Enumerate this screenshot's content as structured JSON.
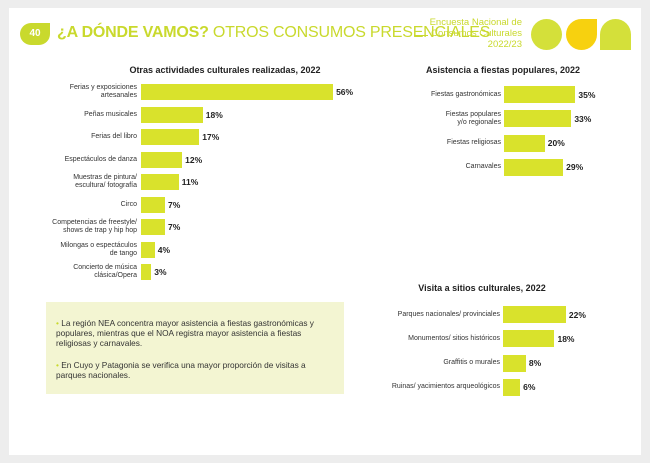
{
  "header": {
    "page_number": "40",
    "title_bold": "¿A DÓNDE VAMOS?",
    "title_rest": " OTROS CONSUMOS PRESENCIALES",
    "survey_line1": "Encuesta Nacional de",
    "survey_line2": "Consumos Culturales",
    "survey_line3": "2022/23"
  },
  "colors": {
    "accent": "#c9d92d",
    "bar": "#d9e22c",
    "yellow": "#f7d10f",
    "note_bg": "#f3f5d2"
  },
  "chart_data": [
    {
      "type": "bar",
      "orientation": "horizontal",
      "title": "Otras actividades culturales realizadas, 2022",
      "categories": [
        "Ferias y exposiciones artesanales",
        "Peñas musicales",
        "Ferias del libro",
        "Espectáculos de danza",
        "Muestras de pintura/ escultura/ fotografía",
        "Circo",
        "Competencias de freestyle/ shows de trap y hip hop",
        "Milongas o espectáculos de tango",
        "Concierto de música clásica/Opera"
      ],
      "category_lines": [
        [
          "Ferias y exposiciones",
          "artesanales"
        ],
        [
          "Peñas musicales"
        ],
        [
          "Ferias del libro"
        ],
        [
          "Espectáculos de danza"
        ],
        [
          "Muestras de pintura/",
          "escultura/ fotografía"
        ],
        [
          "Circo"
        ],
        [
          "Competencias de freestyle/",
          "shows de trap y hip hop"
        ],
        [
          "Milongas o espectáculos",
          "de tango"
        ],
        [
          "Concierto de música",
          "clásica/Opera"
        ]
      ],
      "values": [
        56,
        18,
        17,
        12,
        11,
        7,
        7,
        4,
        3
      ],
      "labels": [
        "56%",
        "18%",
        "17%",
        "12%",
        "11%",
        "7%",
        "7%",
        "4%",
        "3%"
      ],
      "unit": "%"
    },
    {
      "type": "bar",
      "orientation": "horizontal",
      "title": "Asistencia a fiestas populares, 2022",
      "categories": [
        "Fiestas gastronómicas",
        "Fiestas populares y/o regionales",
        "Fiestas religiosas",
        "Carnavales"
      ],
      "category_lines": [
        [
          "Fiestas gastronómicas"
        ],
        [
          "Fiestas populares",
          "y/o regionales"
        ],
        [
          "Fiestas religiosas"
        ],
        [
          "Carnavales"
        ]
      ],
      "values": [
        35,
        33,
        20,
        29
      ],
      "labels": [
        "35%",
        "33%",
        "20%",
        "29%"
      ],
      "unit": "%"
    },
    {
      "type": "bar",
      "orientation": "horizontal",
      "title": "Visita a sitios culturales, 2022",
      "categories": [
        "Parques nacionales/ provinciales",
        "Monumentos/ sitios históricos",
        "Graffitis o murales",
        "Ruinas/ yacimientos arqueológicos"
      ],
      "category_lines": [
        [
          "Parques nacionales/ provinciales"
        ],
        [
          "Monumentos/ sitios históricos"
        ],
        [
          "Graffitis o murales"
        ],
        [
          "Ruinas/ yacimientos arqueológicos"
        ]
      ],
      "values": [
        22,
        18,
        8,
        6
      ],
      "labels": [
        "22%",
        "18%",
        "8%",
        "6%"
      ],
      "unit": "%"
    }
  ],
  "notes": [
    "La región NEA concentra mayor asistencia a fiestas gastronómicas y populares, mientras que el NOA registra mayor asistencia a fiestas religiosas y carnavales.",
    "En Cuyo y Patagonia se verifica una mayor proporción de visitas a parques nacionales."
  ],
  "note_bullet": "•"
}
